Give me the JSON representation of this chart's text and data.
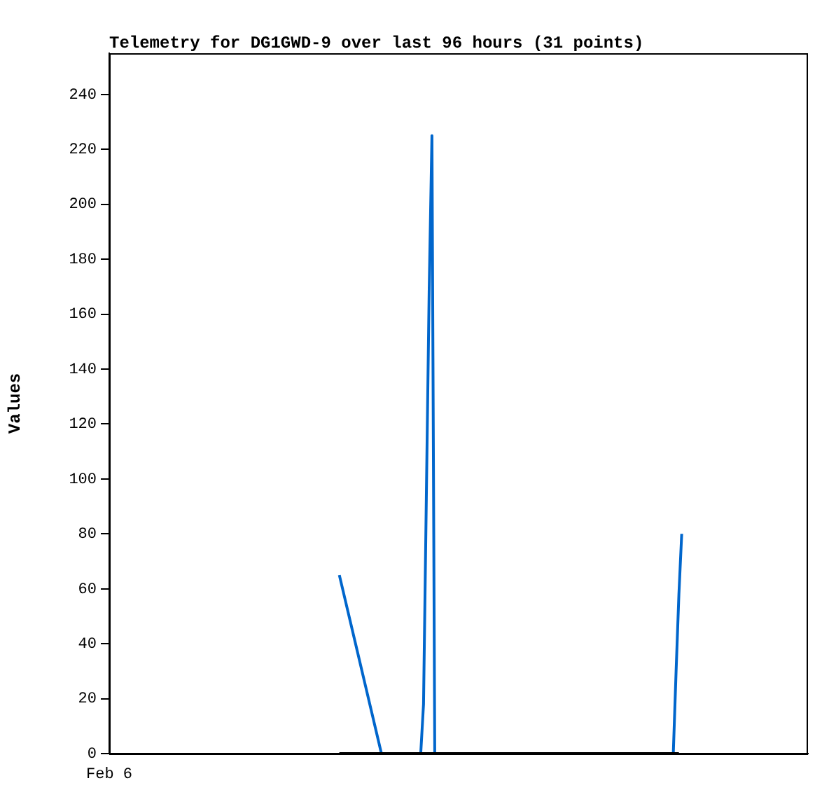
{
  "chart_data": {
    "type": "line",
    "title": "Telemetry for DG1GWD-9 over last 96 hours (31 points)",
    "ylabel": "Values",
    "annotations": [
      "Feb 6"
    ],
    "categories": [
      null,
      null,
      null,
      null,
      null,
      null,
      null,
      null,
      null,
      null,
      null,
      null,
      null,
      null,
      null,
      null,
      null,
      null,
      null,
      null,
      null,
      null,
      null,
      null,
      null,
      null,
      null,
      null,
      null,
      null,
      null,
      null,
      null,
      null,
      null,
      null,
      null,
      null,
      null,
      null,
      null,
      null,
      null,
      null,
      null,
      null,
      null,
      null,
      null,
      null,
      null,
      null,
      null,
      null,
      null,
      null,
      null,
      null,
      null,
      null,
      null,
      null,
      null,
      null,
      null,
      null,
      null,
      null,
      null,
      null,
      null,
      null,
      null,
      null,
      null,
      null,
      null,
      null,
      null,
      null,
      null,
      null,
      null,
      null,
      null,
      null,
      null,
      null,
      null,
      null,
      null,
      null,
      null,
      null,
      null,
      null,
      null,
      null,
      null,
      null,
      null,
      null,
      null,
      null,
      null,
      null,
      null,
      null,
      null,
      null,
      null,
      null,
      null,
      null,
      null,
      null,
      null,
      null,
      null,
      null,
      null,
      null,
      null,
      null,
      null,
      null,
      null,
      null,
      null,
      null,
      null,
      null,
      null,
      null,
      null,
      null,
      null,
      null,
      null,
      null,
      null,
      null,
      null,
      null,
      null,
      null,
      null,
      null,
      null,
      null,
      null,
      null,
      null,
      null,
      null,
      null,
      null,
      null,
      null,
      null,
      null,
      null,
      null,
      null,
      null,
      null,
      null,
      null,
      null,
      null,
      null,
      null,
      null,
      null,
      null,
      null,
      null,
      null,
      null,
      null,
      null,
      null,
      null,
      null,
      null,
      null,
      null,
      null,
      null,
      null,
      null,
      null,
      null,
      null,
      null,
      null,
      null,
      null,
      null,
      null,
      null,
      null,
      null,
      null,
      null,
      null,
      null,
      null,
      null,
      null,
      null,
      null,
      null,
      null,
      null,
      null,
      null,
      null,
      null,
      null,
      null,
      null,
      null,
      null,
      null,
      null,
      null,
      null,
      null,
      null,
      null,
      null,
      null,
      null,
      null,
      null,
      null,
      null,
      null,
      null,
      null,
      null,
      null,
      null,
      null,
      null,
      null,
      null,
      null,
      null
    ],
    "ylim": [
      0,
      255
    ],
    "yticks": [
      0,
      20,
      40,
      60,
      80,
      100,
      120,
      140,
      160,
      180,
      200,
      220,
      240
    ],
    "series": [
      {
        "color": "#000000",
        "values": [
          null,
          null,
          null,
          null,
          null,
          null,
          null,
          null,
          null,
          null,
          null,
          null,
          null,
          null,
          null,
          null,
          null,
          null,
          null,
          null,
          null,
          null,
          null,
          null,
          null,
          null,
          null,
          null,
          null,
          null,
          null,
          null,
          null,
          null,
          null,
          null,
          null,
          null,
          null,
          null,
          null,
          null,
          null,
          null,
          null,
          null,
          null,
          null,
          null,
          null,
          null,
          null,
          null,
          null,
          null,
          null,
          null,
          null,
          null,
          null,
          null,
          null,
          null,
          null,
          null,
          null,
          null,
          null,
          null,
          null,
          null,
          null,
          null,
          null,
          null,
          null,
          null,
          null,
          null,
          null,
          null,
          null,
          0,
          null,
          null,
          null,
          null,
          null,
          null,
          null,
          null,
          null,
          null,
          null,
          null,
          null,
          null,
          null,
          null,
          null,
          null,
          null,
          null,
          null,
          null,
          null,
          null,
          null,
          null,
          null,
          null,
          null,
          null,
          null,
          null,
          null,
          null,
          null,
          null,
          null,
          null,
          null,
          null,
          null,
          null,
          null,
          null,
          null,
          null,
          null,
          null,
          null,
          null,
          null,
          null,
          null,
          null,
          null,
          null,
          null,
          null,
          null,
          null,
          null,
          null,
          null,
          null,
          null,
          null,
          null,
          null,
          null,
          null,
          null,
          null,
          null,
          null,
          null,
          null,
          null,
          null,
          null,
          null,
          null,
          null,
          null,
          null,
          null,
          null,
          null,
          null,
          null,
          null,
          null,
          null,
          null,
          null,
          null,
          null,
          null,
          null,
          null,
          null,
          null,
          null,
          null,
          null,
          null,
          null,
          null,
          null,
          null,
          null,
          null,
          null,
          null,
          null,
          null,
          null,
          null,
          null,
          null,
          null,
          0,
          null,
          null,
          null,
          null,
          null,
          null,
          null,
          null,
          null,
          null,
          null,
          null,
          null,
          null,
          null,
          null,
          null,
          null,
          null,
          null,
          null,
          null,
          null,
          null,
          null,
          null,
          null,
          null,
          null,
          null,
          null,
          null,
          null,
          null,
          null,
          null,
          null,
          null,
          null,
          null,
          null,
          null,
          null,
          null,
          null,
          null
        ]
      },
      {
        "color": "#0066cc",
        "values": [
          null,
          null,
          null,
          null,
          null,
          null,
          null,
          null,
          null,
          null,
          null,
          null,
          null,
          null,
          null,
          null,
          null,
          null,
          null,
          null,
          null,
          null,
          null,
          null,
          null,
          null,
          null,
          null,
          null,
          null,
          null,
          null,
          null,
          null,
          null,
          null,
          null,
          null,
          null,
          null,
          null,
          null,
          null,
          null,
          null,
          null,
          null,
          null,
          null,
          null,
          null,
          null,
          null,
          null,
          null,
          null,
          null,
          null,
          null,
          null,
          null,
          null,
          null,
          null,
          null,
          null,
          null,
          null,
          null,
          null,
          null,
          null,
          null,
          null,
          null,
          null,
          null,
          null,
          null,
          null,
          null,
          null,
          65,
          null,
          null,
          null,
          null,
          null,
          null,
          null,
          null,
          null,
          null,
          null,
          null,
          null,
          null,
          0,
          null,
          null,
          null,
          null,
          null,
          null,
          null,
          null,
          null,
          null,
          null,
          null,
          null,
          0,
          18,
          93,
          168,
          225,
          0,
          null,
          null,
          null,
          null,
          null,
          null,
          null,
          null,
          null,
          null,
          null,
          null,
          null,
          null,
          null,
          null,
          null,
          null,
          null,
          null,
          null,
          null,
          null,
          null,
          null,
          null,
          null,
          null,
          null,
          null,
          null,
          null,
          null,
          null,
          null,
          null,
          null,
          null,
          null,
          null,
          null,
          null,
          null,
          null,
          null,
          null,
          null,
          null,
          null,
          null,
          null,
          null,
          null,
          null,
          null,
          null,
          null,
          null,
          null,
          null,
          null,
          null,
          null,
          null,
          null,
          null,
          null,
          null,
          null,
          null,
          null,
          null,
          null,
          null,
          null,
          null,
          null,
          null,
          null,
          null,
          null,
          null,
          null,
          null,
          0,
          30,
          58,
          80,
          null,
          null,
          null,
          null,
          null,
          null,
          null,
          null,
          null,
          null,
          null,
          null,
          null,
          null,
          null,
          null,
          null,
          null,
          null,
          null,
          null,
          null,
          null,
          null,
          null,
          null,
          null,
          null,
          null,
          null,
          null,
          null,
          null,
          null,
          null,
          null,
          null,
          null,
          null,
          null,
          null,
          null,
          null,
          null,
          null
        ]
      }
    ]
  }
}
